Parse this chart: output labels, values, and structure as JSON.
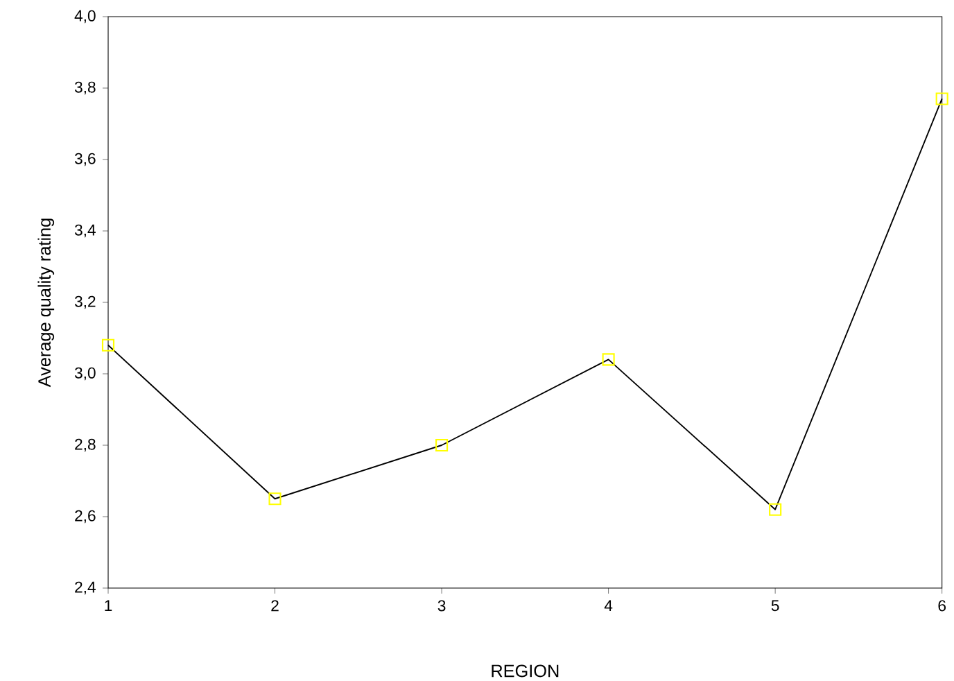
{
  "chart_data": {
    "type": "line",
    "xlabel": "REGION",
    "ylabel": "Average quality rating",
    "x": [
      1,
      2,
      3,
      4,
      5,
      6
    ],
    "series": [
      {
        "color": "#000000",
        "colors": [
          "#ffff00",
          "#ffff00",
          "#ffff00",
          "#ffff00",
          "#ffff00",
          "#ffff00"
        ],
        "values": [
          3.08,
          2.65,
          2.8,
          3.04,
          2.62,
          3.77
        ]
      }
    ],
    "xlim": [
      1,
      6
    ],
    "xticks": [
      1,
      2,
      3,
      4,
      5,
      6
    ],
    "ylim": [
      2.4,
      4.0
    ],
    "yticks": [
      {
        "value": 2.4,
        "label": "2,4"
      },
      {
        "value": 2.6,
        "label": "2,6"
      },
      {
        "value": 2.8,
        "label": "2,8"
      },
      {
        "value": 3.0,
        "label": "3,0"
      },
      {
        "value": 3.2,
        "label": "3,2"
      },
      {
        "value": 3.4,
        "label": "3,4"
      },
      {
        "value": 3.6,
        "label": "3,6"
      },
      {
        "value": 3.8,
        "label": "3,8"
      },
      {
        "value": 4.0,
        "label": "4,0"
      }
    ],
    "grid": false,
    "marker": "square",
    "line_style": "solid"
  }
}
